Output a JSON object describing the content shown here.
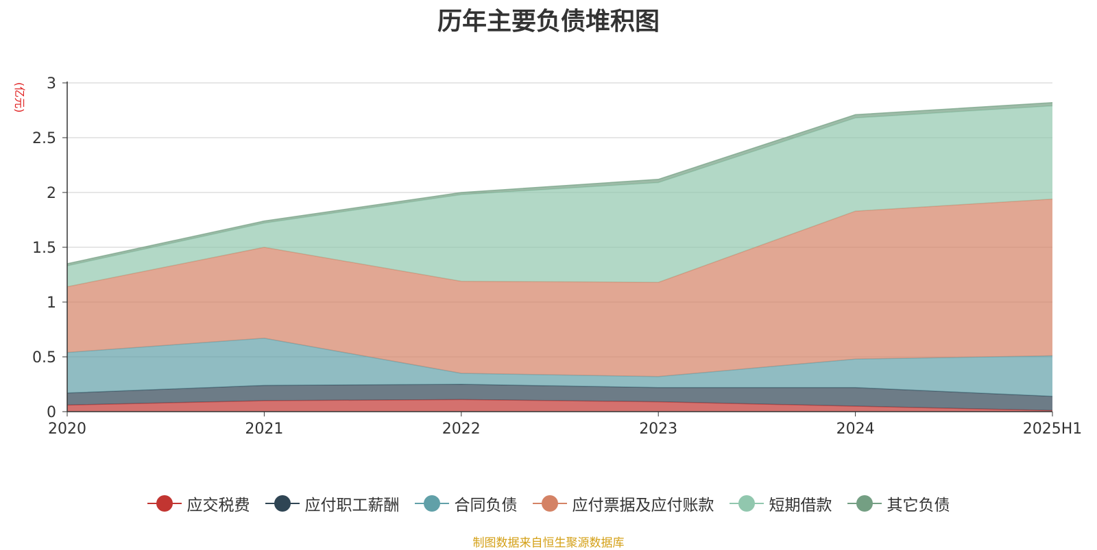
{
  "chart_data": {
    "type": "area",
    "title": "历年主要负债堆积图",
    "unit_label": "(亿元)",
    "categories": [
      "2020",
      "2021",
      "2022",
      "2023",
      "2024",
      "2025H1"
    ],
    "ylim": [
      0,
      3
    ],
    "yticks": [
      "0",
      "0.5",
      "1",
      "1.5",
      "2",
      "2.5",
      "3"
    ],
    "grid": true,
    "legend_position": "bottom",
    "stacked": true,
    "series": [
      {
        "name": "应交税费",
        "color": "#c23531",
        "values": [
          0.06,
          0.1,
          0.11,
          0.09,
          0.05,
          0.01
        ]
      },
      {
        "name": "应付职工薪酬",
        "color": "#2f4554",
        "values": [
          0.11,
          0.14,
          0.14,
          0.13,
          0.17,
          0.13
        ]
      },
      {
        "name": "合同负债",
        "color": "#61a0a8",
        "values": [
          0.37,
          0.43,
          0.1,
          0.1,
          0.26,
          0.37
        ]
      },
      {
        "name": "应付票据及应付账款",
        "color": "#d48265",
        "values": [
          0.6,
          0.83,
          0.84,
          0.86,
          1.35,
          1.43
        ]
      },
      {
        "name": "短期借款",
        "color": "#91c7ae",
        "values": [
          0.19,
          0.22,
          0.79,
          0.91,
          0.85,
          0.85
        ]
      },
      {
        "name": "其它负债",
        "color": "#749f83",
        "values": [
          0.02,
          0.02,
          0.02,
          0.03,
          0.03,
          0.03
        ]
      }
    ]
  },
  "footer": {
    "source": "制图数据来自恒生聚源数据库"
  }
}
